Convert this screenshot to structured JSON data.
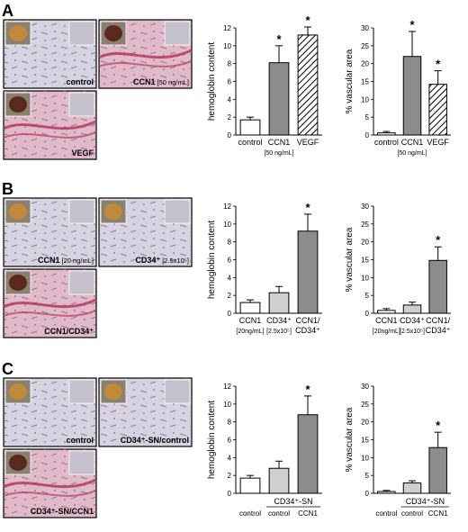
{
  "panels": [
    {
      "letter": "A",
      "micrographs": [
        {
          "label": "control",
          "sublabel": "",
          "tissue": "plain"
        },
        {
          "label": "CCN1",
          "sublabel": "[50 ng/mL]",
          "tissue": "vessel"
        },
        {
          "label": "VEGF",
          "sublabel": "",
          "tissue": "vessel"
        }
      ],
      "chart_data": [
        {
          "type": "bar",
          "ylabel": "hemoglobin content",
          "ylim": [
            0,
            12
          ],
          "yticks": [
            0,
            2,
            4,
            6,
            8,
            10,
            12
          ],
          "categories": [
            "control",
            "CCN1",
            "VEGF"
          ],
          "category_sublabels": [
            "",
            "[50 ng/mL]",
            ""
          ],
          "values": [
            1.7,
            8.1,
            11.2
          ],
          "errors": [
            0.3,
            1.9,
            0.9
          ],
          "fills": [
            "white",
            "gray",
            "hatch"
          ],
          "significance": [
            "",
            "*",
            "*"
          ],
          "group_label": ""
        },
        {
          "type": "bar",
          "ylabel": "% vascular area",
          "ylim": [
            0,
            30
          ],
          "yticks": [
            0,
            5,
            10,
            15,
            20,
            25,
            30
          ],
          "categories": [
            "control",
            "CCN1",
            "VEGF"
          ],
          "category_sublabels": [
            "",
            "[50 ng/mL]",
            ""
          ],
          "values": [
            0.6,
            22.0,
            14.2
          ],
          "errors": [
            0.4,
            7.0,
            3.8
          ],
          "fills": [
            "white",
            "gray",
            "hatch"
          ],
          "significance": [
            "",
            "*",
            "*"
          ],
          "group_label": ""
        }
      ]
    },
    {
      "letter": "B",
      "micrographs": [
        {
          "label": "CCN1",
          "sublabel": "[20 ng/mL]",
          "tissue": "plain"
        },
        {
          "label": "CD34⁺",
          "sublabel": "[2.5x10⁵]",
          "tissue": "plain"
        },
        {
          "label": "CCN1/CD34⁺",
          "sublabel": "",
          "tissue": "vessel"
        }
      ],
      "chart_data": [
        {
          "type": "bar",
          "ylabel": "hemoglobin content",
          "ylim": [
            0,
            12
          ],
          "yticks": [
            0,
            2,
            4,
            6,
            8,
            10,
            12
          ],
          "categories": [
            "CCN1",
            "CD34⁺",
            "CCN1/"
          ],
          "category_sublabels": [
            "[20ng/mL]",
            "[2.5x10⁵]",
            "CD34⁺"
          ],
          "values": [
            1.2,
            2.3,
            9.2
          ],
          "errors": [
            0.3,
            0.7,
            1.9
          ],
          "fills": [
            "white",
            "lightgray",
            "gray"
          ],
          "significance": [
            "",
            "",
            "*"
          ],
          "group_label": ""
        },
        {
          "type": "bar",
          "ylabel": "% vascular area",
          "ylim": [
            0,
            30
          ],
          "yticks": [
            0,
            5,
            10,
            15,
            20,
            25,
            30
          ],
          "categories": [
            "CCN1",
            "CD34⁺",
            "CCN1/"
          ],
          "category_sublabels": [
            "[20ng/mL]",
            "[2.5x10⁵]",
            "CD34⁺"
          ],
          "values": [
            0.8,
            2.3,
            14.8
          ],
          "errors": [
            0.5,
            0.8,
            3.8
          ],
          "fills": [
            "white",
            "lightgray",
            "gray"
          ],
          "significance": [
            "",
            "",
            "*"
          ],
          "group_label": ""
        }
      ]
    },
    {
      "letter": "C",
      "micrographs": [
        {
          "label": "control",
          "sublabel": "",
          "tissue": "plain"
        },
        {
          "label": "CD34⁺-SN/control",
          "sublabel": "",
          "tissue": "plain"
        },
        {
          "label": "CD34⁺-SN/CCN1",
          "sublabel": "",
          "tissue": "vessel"
        }
      ],
      "chart_data": [
        {
          "type": "bar",
          "ylabel": "hemoglobin content",
          "ylim": [
            0,
            12
          ],
          "yticks": [
            0,
            2,
            4,
            6,
            8,
            10,
            12
          ],
          "categories": [
            "control",
            "control",
            "CCN1"
          ],
          "category_sublabels": [
            "",
            "",
            ""
          ],
          "values": [
            1.7,
            2.8,
            8.8
          ],
          "errors": [
            0.3,
            0.8,
            2.1
          ],
          "fills": [
            "white",
            "lightgray",
            "gray"
          ],
          "significance": [
            "",
            "",
            "*"
          ],
          "group_label": "CD34⁺-SN"
        },
        {
          "type": "bar",
          "ylabel": "% vascular area",
          "ylim": [
            0,
            30
          ],
          "yticks": [
            0,
            5,
            10,
            15,
            20,
            25,
            30
          ],
          "categories": [
            "control",
            "control",
            "CCN1"
          ],
          "category_sublabels": [
            "",
            "",
            ""
          ],
          "values": [
            0.5,
            2.9,
            12.8
          ],
          "errors": [
            0.3,
            0.6,
            4.3
          ],
          "fills": [
            "white",
            "lightgray",
            "gray"
          ],
          "significance": [
            "",
            "",
            "*"
          ],
          "group_label": "CD34⁺-SN"
        }
      ]
    }
  ],
  "colors": {
    "bar_gray": "#8c8c8c",
    "bar_lightgray": "#cfcfcf",
    "bar_white": "#ffffff",
    "tissue_plain": "#d7d2e0",
    "tissue_vessel": "#e2b9c8",
    "vessel_red": "#b33a5a",
    "photo_frame": "#000000"
  }
}
